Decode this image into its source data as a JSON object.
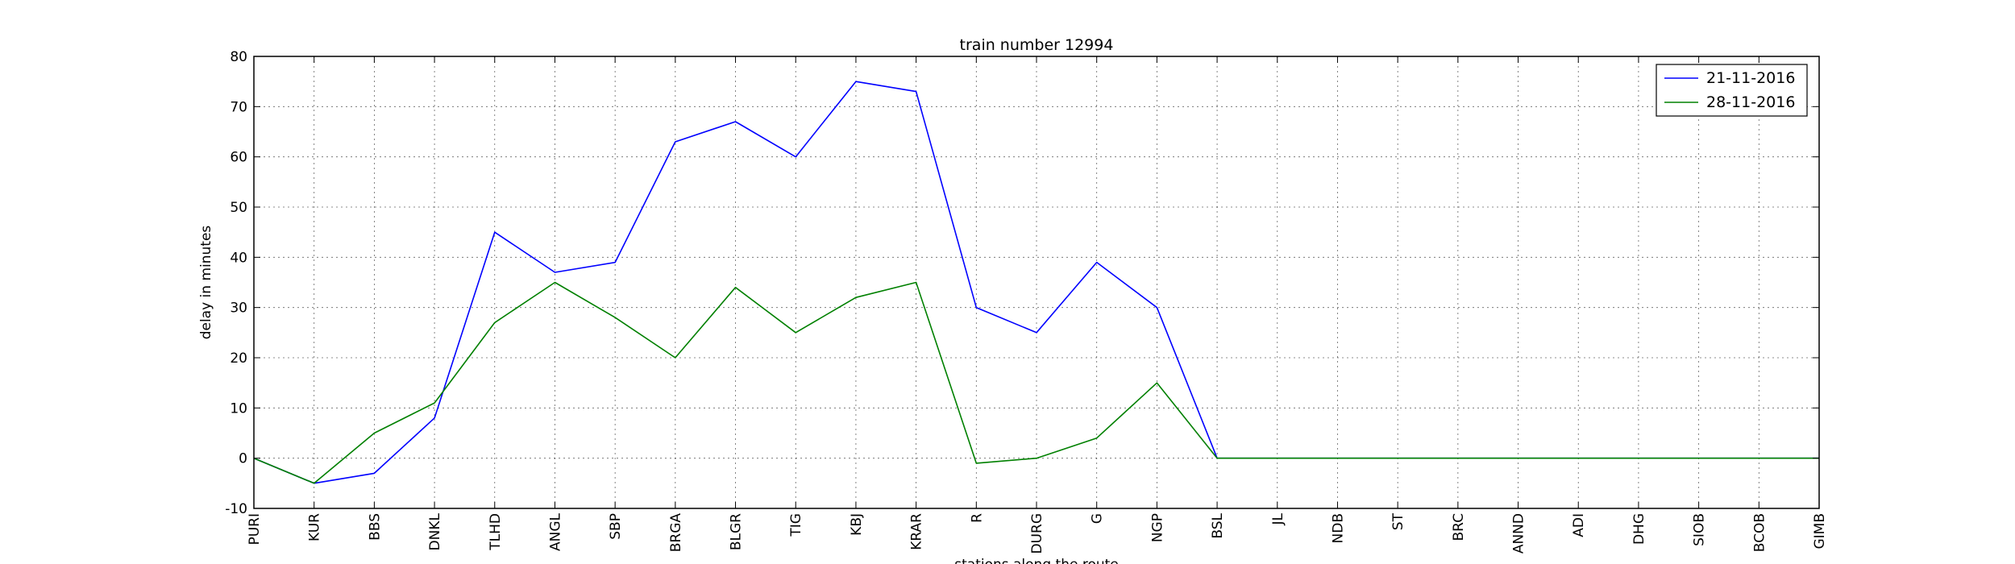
{
  "chart_data": {
    "type": "line",
    "title": "train number 12994",
    "xlabel": "stations along the route",
    "ylabel": "delay in minutes",
    "ylim": [
      -10,
      80
    ],
    "yticks": [
      -10,
      0,
      10,
      20,
      30,
      40,
      50,
      60,
      70,
      80
    ],
    "grid": true,
    "legend_position": "top-right",
    "categories": [
      "PURI",
      "KUR",
      "BBS",
      "DNKL",
      "TLHD",
      "ANGL",
      "SBP",
      "BRGA",
      "BLGR",
      "TIG",
      "KBJ",
      "KRAR",
      "R",
      "DURG",
      "G",
      "NGP",
      "BSL",
      "JL",
      "NDB",
      "ST",
      "BRC",
      "ANND",
      "ADI",
      "DHG",
      "SIOB",
      "BCOB",
      "GIMB"
    ],
    "series": [
      {
        "name": "21-11-2016",
        "color": "#0000ff",
        "values": [
          0,
          -5,
          -3,
          8,
          45,
          37,
          39,
          63,
          67,
          60,
          75,
          73,
          30,
          25,
          39,
          30,
          0,
          0,
          0,
          0,
          0,
          0,
          0,
          0,
          0,
          0,
          0
        ]
      },
      {
        "name": "28-11-2016",
        "color": "#008000",
        "values": [
          0,
          -5,
          5,
          11,
          27,
          35,
          28,
          20,
          34,
          25,
          32,
          35,
          -1,
          0,
          4,
          15,
          0,
          0,
          0,
          0,
          0,
          0,
          0,
          0,
          0,
          0,
          0
        ]
      }
    ]
  }
}
